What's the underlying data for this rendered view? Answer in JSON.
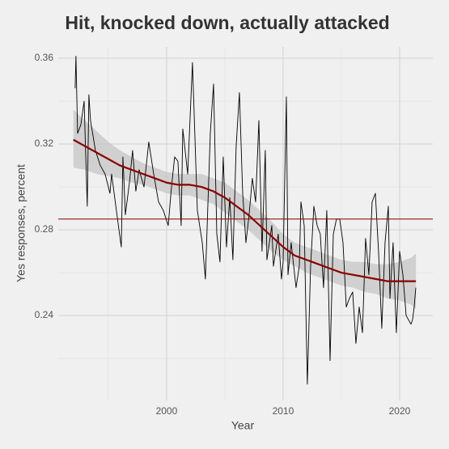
{
  "chart_data": {
    "type": "line",
    "title": "Hit, knocked down, actually attacked",
    "xlabel": "Year",
    "ylabel": "Yes responses, percent",
    "xlim": [
      1990.7,
      2022.85
    ],
    "ylim": [
      0.2004,
      0.3653
    ],
    "xticks": [
      2000,
      2010,
      2020
    ],
    "yticks": [
      0.24,
      0.28,
      0.32,
      0.36
    ],
    "xminor_ticks": [
      1995,
      2005,
      2015
    ],
    "yminor_ticks": [
      0.22,
      0.26,
      0.3,
      0.34
    ],
    "grid": true,
    "reference_line": {
      "value": 0.285,
      "color": "#800000"
    },
    "series": [
      {
        "color": "#000000",
        "x": [
          1992.15,
          1992.22,
          1992.36,
          1992.64,
          1992.92,
          1993.19,
          1993.33,
          1993.47,
          1993.89,
          1994.31,
          1994.72,
          1995.14,
          1995.28,
          1995.69,
          1996.11,
          1996.25,
          1996.46,
          1996.81,
          1997.08,
          1997.36,
          1997.64,
          1998.06,
          1998.47,
          1998.89,
          1999.31,
          1999.72,
          2000.14,
          2000.42,
          2000.69,
          2000.97,
          2001.25,
          2001.39,
          2001.81,
          2002.22,
          2002.64,
          2003.06,
          2003.33,
          2003.75,
          2004.03,
          2004.31,
          2004.58,
          2004.86,
          2005.14,
          2005.42,
          2005.69,
          2005.97,
          2006.25,
          2006.53,
          2006.81,
          2007.08,
          2007.36,
          2007.64,
          2007.92,
          2008.19,
          2008.47,
          2008.61,
          2009.03,
          2009.17,
          2009.58,
          2009.86,
          2010.0,
          2010.28,
          2010.42,
          2010.69,
          2011.11,
          2011.39,
          2011.53,
          2011.81,
          2012.08,
          2012.36,
          2012.64,
          2012.92,
          2013.19,
          2013.47,
          2013.75,
          2014.03,
          2014.31,
          2014.58,
          2014.86,
          2015.14,
          2015.42,
          2015.69,
          2015.97,
          2016.25,
          2016.53,
          2016.81,
          2017.08,
          2017.36,
          2017.64,
          2017.92,
          2018.19,
          2018.47,
          2018.75,
          2019.03,
          2019.17,
          2019.44,
          2019.72,
          2020.0,
          2020.28,
          2020.56,
          2020.97,
          2021.11,
          2021.25,
          2021.39
        ],
        "values": [
          0.346,
          0.361,
          0.325,
          0.329,
          0.34,
          0.291,
          0.343,
          0.331,
          0.317,
          0.31,
          0.306,
          0.297,
          0.306,
          0.289,
          0.272,
          0.314,
          0.287,
          0.302,
          0.317,
          0.298,
          0.308,
          0.3,
          0.321,
          0.306,
          0.293,
          0.289,
          0.282,
          0.3,
          0.314,
          0.312,
          0.282,
          0.327,
          0.306,
          0.358,
          0.289,
          0.274,
          0.257,
          0.325,
          0.348,
          0.278,
          0.265,
          0.314,
          0.272,
          0.295,
          0.266,
          0.319,
          0.344,
          0.297,
          0.274,
          0.287,
          0.304,
          0.293,
          0.331,
          0.27,
          0.317,
          0.266,
          0.282,
          0.263,
          0.278,
          0.257,
          0.265,
          0.342,
          0.259,
          0.274,
          0.253,
          0.263,
          0.293,
          0.282,
          0.208,
          0.263,
          0.291,
          0.282,
          0.278,
          0.253,
          0.289,
          0.219,
          0.278,
          0.285,
          0.285,
          0.274,
          0.244,
          0.248,
          0.251,
          0.227,
          0.244,
          0.232,
          0.276,
          0.259,
          0.293,
          0.297,
          0.27,
          0.234,
          0.274,
          0.291,
          0.248,
          0.274,
          0.232,
          0.27,
          0.259,
          0.24,
          0.236,
          0.238,
          0.244,
          0.253
        ]
      },
      {
        "color": "#8b0000",
        "band_color": "#c8c8c8",
        "x": [
          1992,
          1993,
          1994,
          1995,
          1996,
          1997,
          1998,
          1999,
          2000,
          2001,
          2002,
          2003,
          2004,
          2005,
          2006,
          2007,
          2008,
          2009,
          2010,
          2011,
          2012,
          2013,
          2014,
          2015,
          2016,
          2017,
          2018,
          2019,
          2020,
          2021,
          2021.4
        ],
        "values": [
          0.322,
          0.319,
          0.316,
          0.313,
          0.31,
          0.308,
          0.306,
          0.304,
          0.302,
          0.301,
          0.301,
          0.3,
          0.298,
          0.295,
          0.291,
          0.287,
          0.282,
          0.277,
          0.272,
          0.268,
          0.266,
          0.264,
          0.262,
          0.26,
          0.259,
          0.258,
          0.257,
          0.256,
          0.256,
          0.256,
          0.256
        ],
        "upper": [
          0.336,
          0.331,
          0.326,
          0.321,
          0.317,
          0.314,
          0.311,
          0.309,
          0.307,
          0.306,
          0.306,
          0.306,
          0.304,
          0.302,
          0.298,
          0.294,
          0.289,
          0.284,
          0.278,
          0.274,
          0.272,
          0.27,
          0.268,
          0.266,
          0.265,
          0.265,
          0.264,
          0.264,
          0.265,
          0.267,
          0.269
        ],
        "lower": [
          0.309,
          0.308,
          0.306,
          0.305,
          0.304,
          0.302,
          0.301,
          0.299,
          0.297,
          0.296,
          0.296,
          0.294,
          0.292,
          0.288,
          0.284,
          0.28,
          0.275,
          0.27,
          0.266,
          0.263,
          0.26,
          0.258,
          0.256,
          0.254,
          0.253,
          0.251,
          0.25,
          0.248,
          0.247,
          0.245,
          0.243
        ]
      }
    ]
  }
}
